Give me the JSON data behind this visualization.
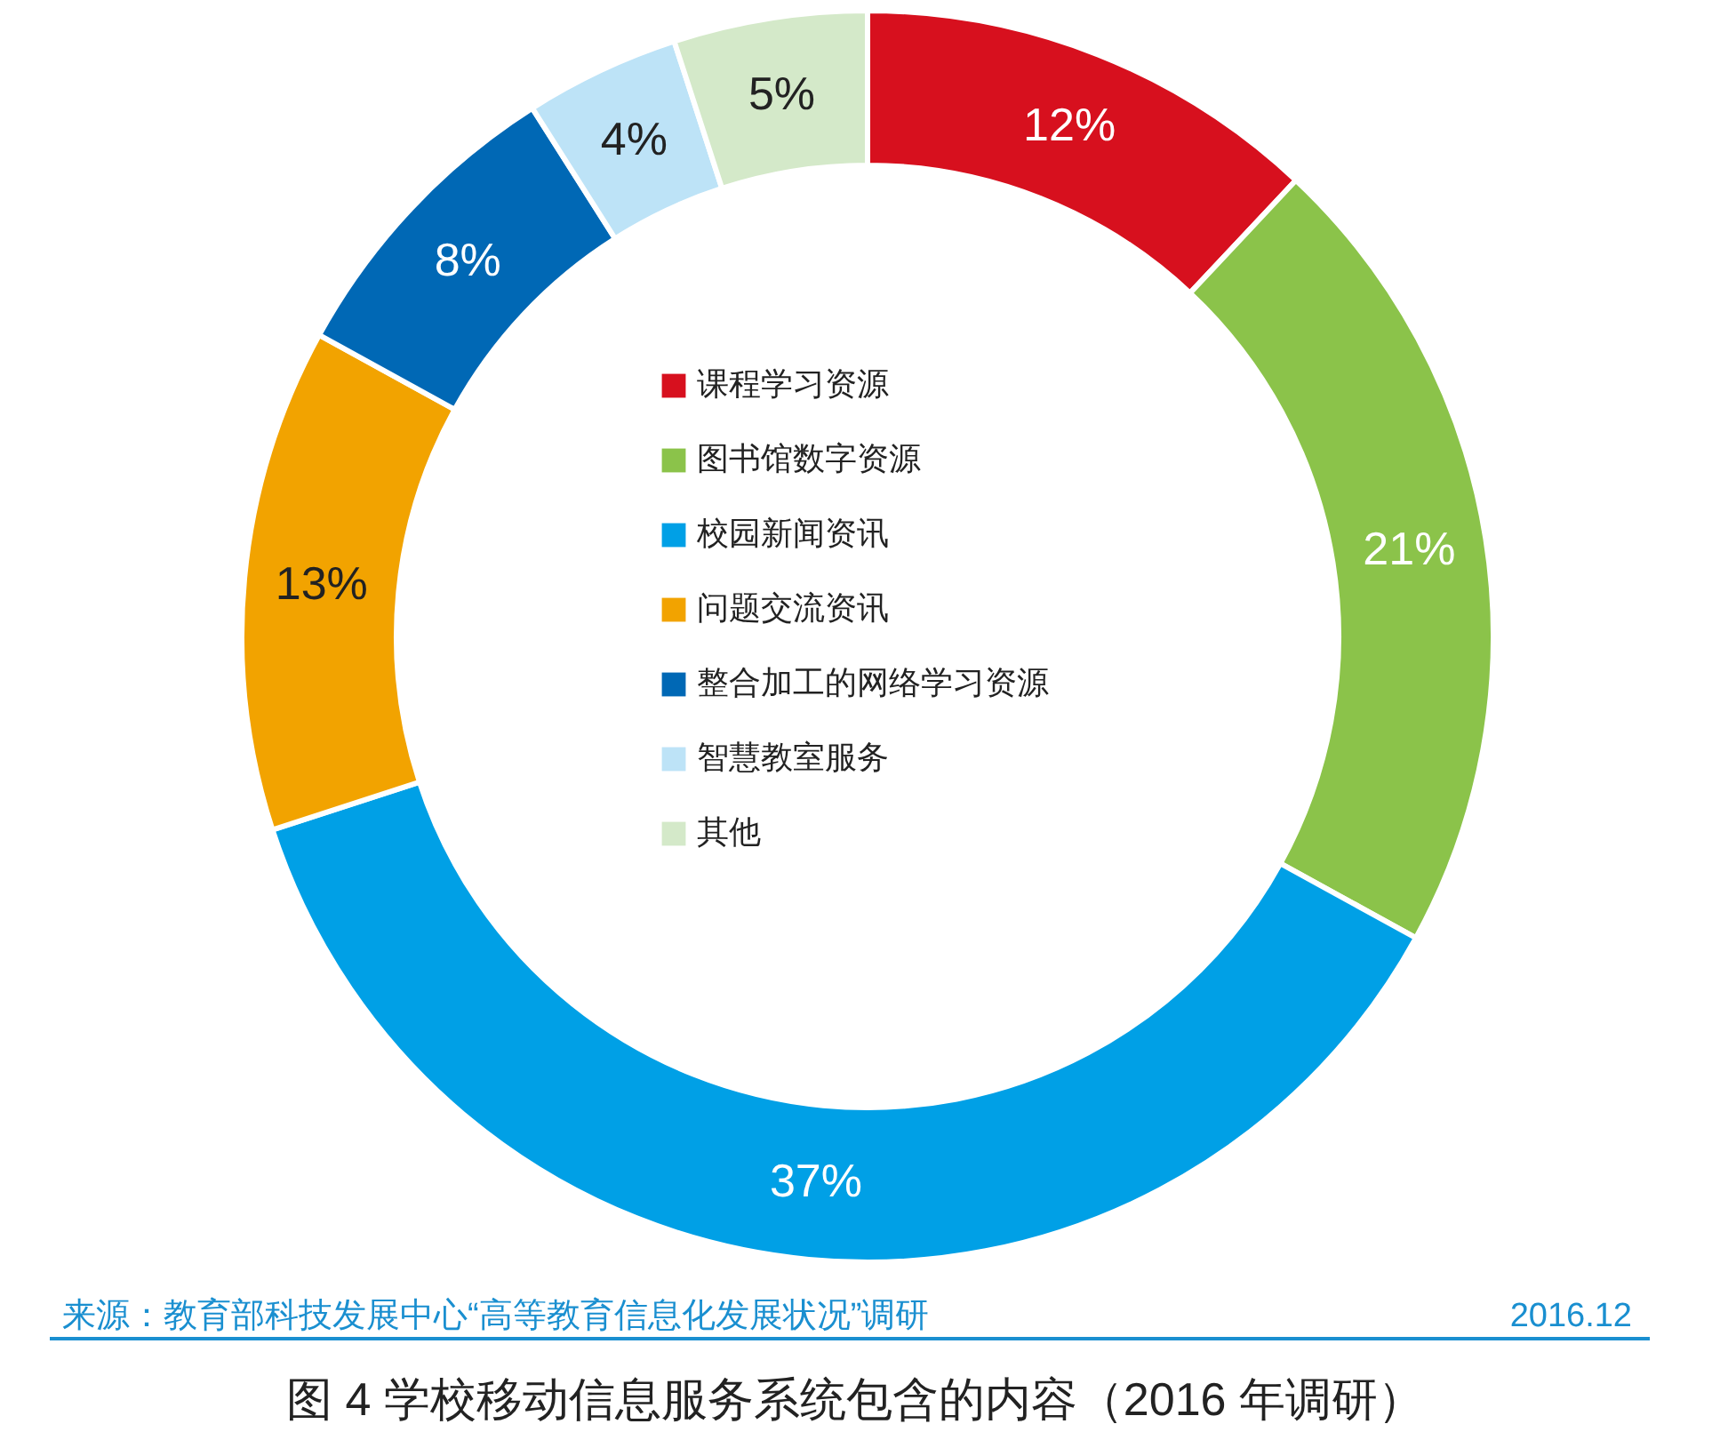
{
  "chart_data": {
    "type": "donut",
    "title": "图 4  学校移动信息服务系统包含的内容（2016 年调研）",
    "categories": [
      "课程学习资源",
      "图书馆数字资源",
      "校园新闻资讯",
      "问题交流资讯",
      "整合加工的网络学习资源",
      "智慧教室服务",
      "其他"
    ],
    "values": [
      12,
      21,
      37,
      13,
      8,
      4,
      5
    ],
    "colors": [
      "#d7101e",
      "#8bc34a",
      "#00a0e6",
      "#f2a300",
      "#0068b5",
      "#bde3f7",
      "#d4e9c9"
    ],
    "value_labels": [
      "12%",
      "21%",
      "37%",
      "13%",
      "8%",
      "4%",
      "5%"
    ],
    "legend": "center",
    "annotations": [
      "来源：教育部科技发展中心“高等教育信息化发展状况”调研",
      "2016.12"
    ]
  }
}
